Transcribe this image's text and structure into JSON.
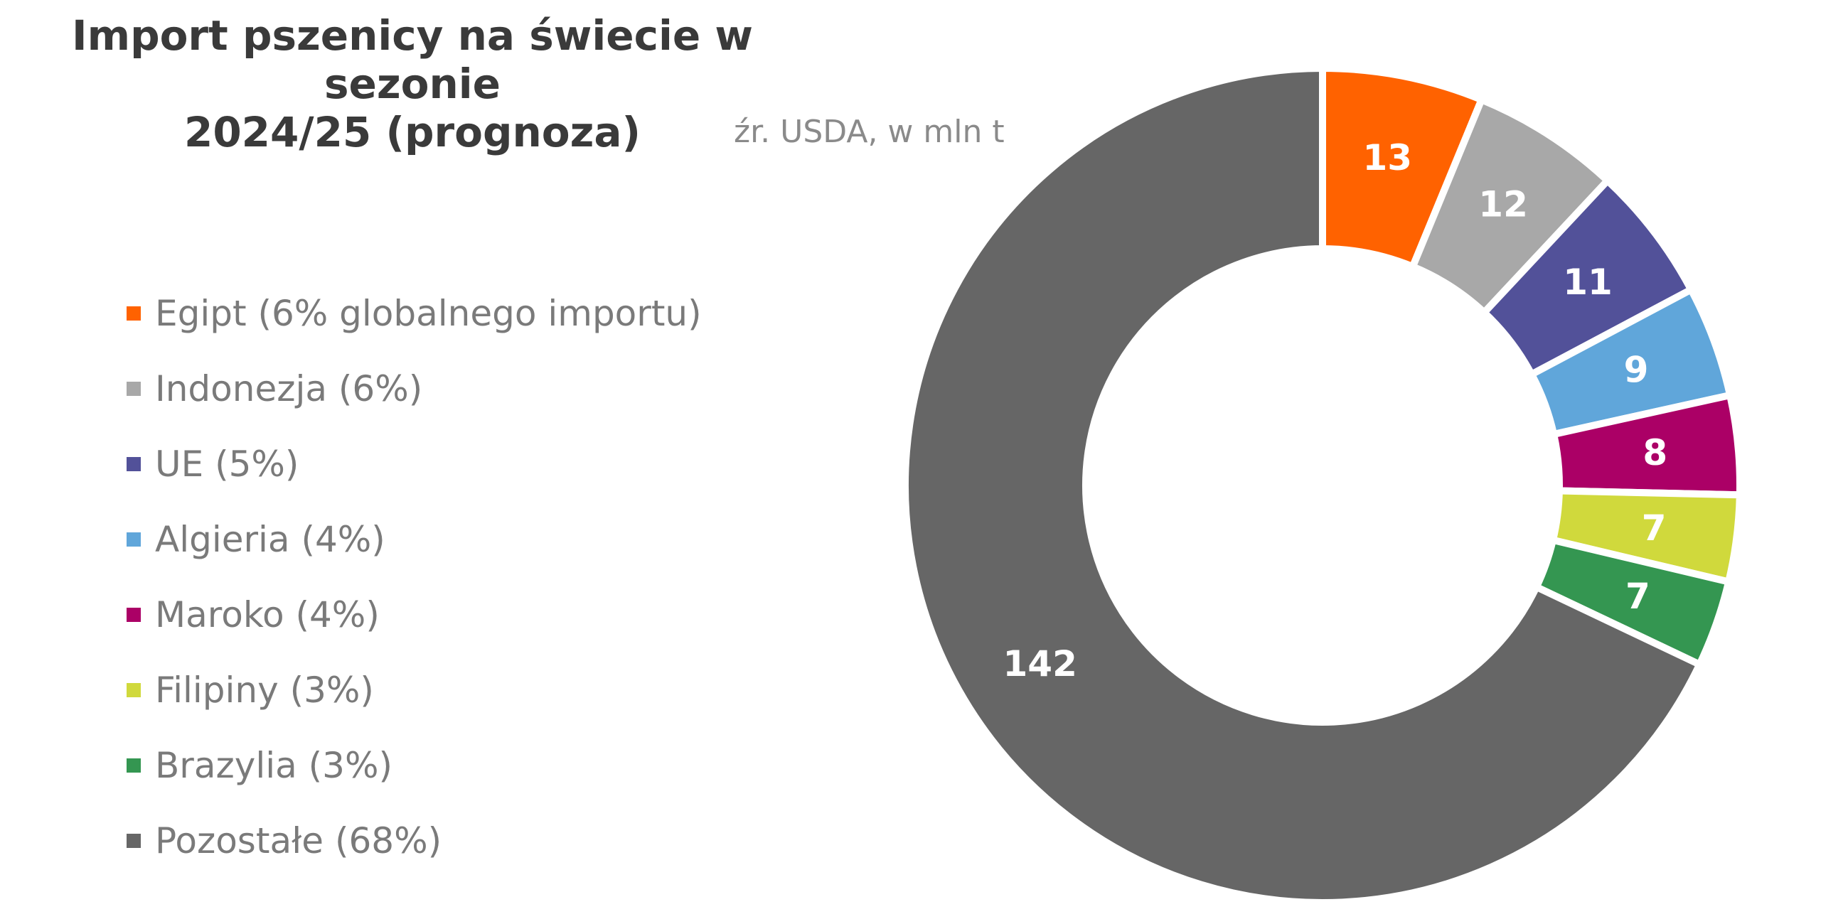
{
  "title_line1": "Import pszenicy na świecie w sezonie",
  "title_line2": "2024/25 (prognoza)",
  "subtitle": "źr. USDA, w mln t",
  "chart_data": {
    "type": "pie",
    "donut": true,
    "title": "Import pszenicy na świecie w sezonie 2024/25 (prognoza)",
    "unit": "mln t",
    "legend_position": "left",
    "slices": [
      {
        "label": "Egipt (6% globalnego importu)",
        "value": 13,
        "value_label": "13",
        "color": "#ff6200"
      },
      {
        "label": "Indonezja (6%)",
        "value": 12,
        "value_label": "12",
        "color": "#a8a8a8"
      },
      {
        "label": "UE (5%)",
        "value": 11,
        "value_label": "11",
        "color": "#525199"
      },
      {
        "label": "Algieria (4%)",
        "value": 9,
        "value_label": "9",
        "color": "#60a6da"
      },
      {
        "label": "Maroko (4%)",
        "value": 8,
        "value_label": "8",
        "color": "#ab0066"
      },
      {
        "label": "Filipiny (3%)",
        "value": 7,
        "value_label": "7",
        "color": "#d0d93c"
      },
      {
        "label": "Brazylia (3%)",
        "value": 7,
        "value_label": "7",
        "color": "#349651"
      },
      {
        "label": "Pozostałe (68%)",
        "value": 142,
        "value_label": "142",
        "color": "#666666"
      }
    ]
  }
}
